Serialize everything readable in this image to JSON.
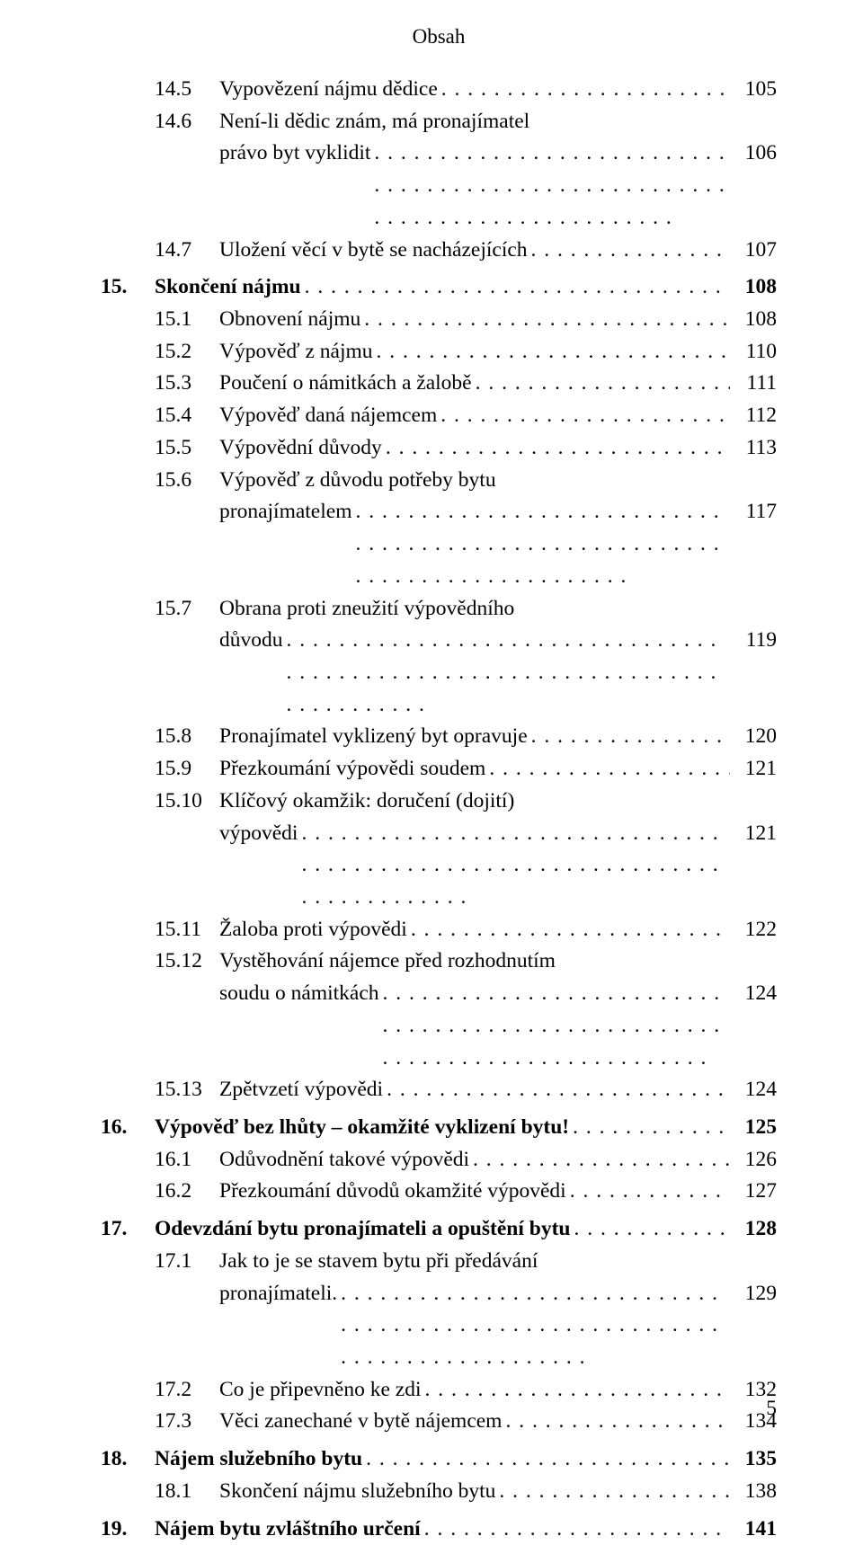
{
  "header": "Obsah",
  "page_number": "5",
  "entries": [
    {
      "type": "sub",
      "num": "14.5",
      "label": "Vypovězení nájmu dědice",
      "page": "105"
    },
    {
      "type": "sub-wrap",
      "num": "14.6",
      "line1": "Není-li dědic znám, má pronajímatel",
      "line2": "právo byt vyklidit",
      "page": "106"
    },
    {
      "type": "sub",
      "num": "14.7",
      "label": "Uložení věcí v bytě se nacházejících",
      "page": "107"
    },
    {
      "type": "chap",
      "num": "15.",
      "label": "Skončení nájmu",
      "page": "108"
    },
    {
      "type": "sub",
      "num": "15.1",
      "label": "Obnovení nájmu",
      "page": "108"
    },
    {
      "type": "sub",
      "num": "15.2",
      "label": "Výpověď z nájmu",
      "page": "110"
    },
    {
      "type": "sub",
      "num": "15.3",
      "label": "Poučení o námitkách a žalobě",
      "page": "111"
    },
    {
      "type": "sub",
      "num": "15.4",
      "label": "Výpověď daná nájemcem",
      "page": "112"
    },
    {
      "type": "sub",
      "num": "15.5",
      "label": "Výpovědní důvody",
      "page": "113"
    },
    {
      "type": "sub-wrap",
      "num": "15.6",
      "line1": "Výpověď z důvodu potřeby bytu",
      "line2": "pronajímatelem",
      "page": "117"
    },
    {
      "type": "sub-wrap",
      "num": "15.7",
      "line1": "Obrana proti zneužití výpovědního",
      "line2": "důvodu",
      "page": "119"
    },
    {
      "type": "sub",
      "num": "15.8",
      "label": "Pronajímatel vyklizený byt opravuje",
      "page": "120"
    },
    {
      "type": "sub",
      "num": "15.9",
      "label": "Přezkoumání výpovědi soudem",
      "page": "121"
    },
    {
      "type": "sub-wrap",
      "num": "15.10",
      "line1": "Klíčový okamžik: doručení (dojití)",
      "line2": "výpovědi",
      "page": "121"
    },
    {
      "type": "sub",
      "num": "15.11",
      "label": "Žaloba proti výpovědi",
      "page": "122"
    },
    {
      "type": "sub-wrap",
      "num": "15.12",
      "line1": "Vystěhování nájemce před rozhodnutím",
      "line2": "soudu o námitkách",
      "page": "124"
    },
    {
      "type": "sub",
      "num": "15.13",
      "label": "Zpětvzetí výpovědi",
      "page": "124"
    },
    {
      "type": "chap",
      "num": "16.",
      "label": "Výpověď bez lhůty – okamžité vyklizení bytu!",
      "page": "125"
    },
    {
      "type": "sub",
      "num": "16.1",
      "label": "Odůvodnění takové výpovědi",
      "page": "126"
    },
    {
      "type": "sub",
      "num": "16.2",
      "label": "Přezkoumání důvodů okamžité výpovědi",
      "page": "127"
    },
    {
      "type": "chap",
      "num": "17.",
      "label": "Odevzdání bytu pronajímateli a opuštění bytu",
      "page": "128"
    },
    {
      "type": "sub-wrap",
      "num": "17.1",
      "line1": "Jak to je se stavem bytu při předávání",
      "line2": "pronajímateli.",
      "page": "129"
    },
    {
      "type": "sub",
      "num": "17.2",
      "label": "Co je připevněno ke zdi",
      "page": "132"
    },
    {
      "type": "sub",
      "num": "17.3",
      "label": "Věci zanechané v bytě nájemcem",
      "page": "134"
    },
    {
      "type": "chap",
      "num": "18.",
      "label": "Nájem služebního bytu",
      "page": "135"
    },
    {
      "type": "sub",
      "num": "18.1",
      "label": "Skončení nájmu služebního bytu",
      "page": "138"
    },
    {
      "type": "chap",
      "num": "19.",
      "label": "Nájem bytu zvláštního určení",
      "page": "141"
    }
  ]
}
